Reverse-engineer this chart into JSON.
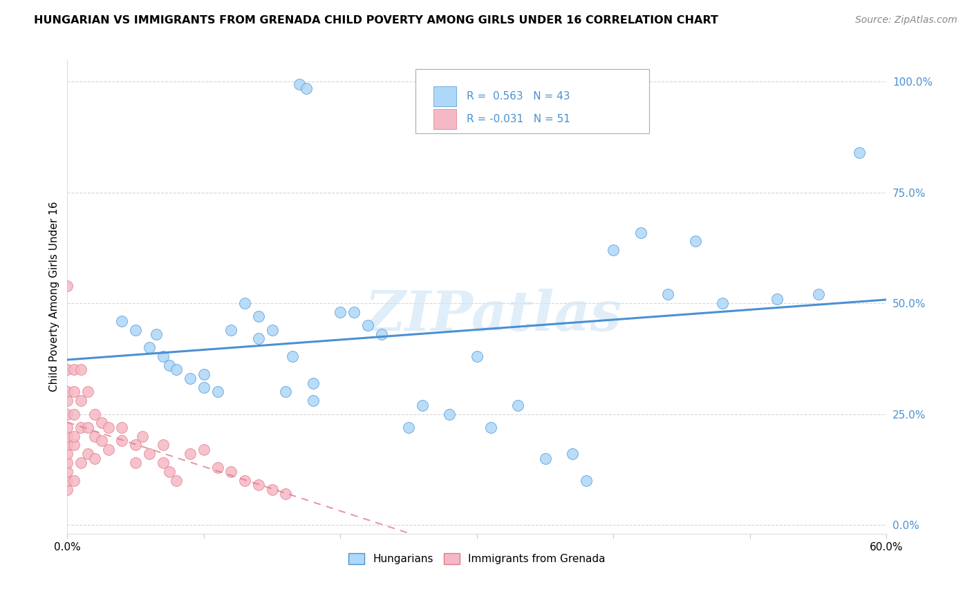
{
  "title": "HUNGARIAN VS IMMIGRANTS FROM GRENADA CHILD POVERTY AMONG GIRLS UNDER 16 CORRELATION CHART",
  "source": "Source: ZipAtlas.com",
  "ylabel": "Child Poverty Among Girls Under 16",
  "xlim": [
    0,
    0.6
  ],
  "ylim": [
    -0.02,
    1.05
  ],
  "yticks": [
    0,
    0.25,
    0.5,
    0.75,
    1.0
  ],
  "ytick_labels": [
    "0.0%",
    "25.0%",
    "50.0%",
    "75.0%",
    "100.0%"
  ],
  "xticks": [
    0.0,
    0.1,
    0.2,
    0.3,
    0.4,
    0.5,
    0.6
  ],
  "xtick_labels": [
    "0.0%",
    "",
    "",
    "",
    "",
    "",
    "60.0%"
  ],
  "hungarian_R": 0.563,
  "hungarian_N": 43,
  "grenada_R": -0.031,
  "grenada_N": 51,
  "hungarian_color": "#add8f7",
  "grenada_color": "#f5b8c4",
  "hungarian_line_color": "#4a90d4",
  "grenada_line_color": "#e07888",
  "watermark": "ZIPatlas",
  "hungarian_x": [
    0.17,
    0.175,
    0.04,
    0.05,
    0.06,
    0.065,
    0.07,
    0.075,
    0.08,
    0.09,
    0.1,
    0.1,
    0.11,
    0.12,
    0.13,
    0.14,
    0.14,
    0.15,
    0.16,
    0.165,
    0.18,
    0.18,
    0.2,
    0.21,
    0.22,
    0.23,
    0.25,
    0.26,
    0.28,
    0.3,
    0.31,
    0.33,
    0.35,
    0.37,
    0.38,
    0.4,
    0.42,
    0.44,
    0.46,
    0.48,
    0.52,
    0.55,
    0.58
  ],
  "hungarian_y": [
    0.995,
    0.985,
    0.46,
    0.44,
    0.4,
    0.43,
    0.38,
    0.36,
    0.35,
    0.33,
    0.31,
    0.34,
    0.3,
    0.44,
    0.5,
    0.42,
    0.47,
    0.44,
    0.3,
    0.38,
    0.28,
    0.32,
    0.48,
    0.48,
    0.45,
    0.43,
    0.22,
    0.27,
    0.25,
    0.38,
    0.22,
    0.27,
    0.15,
    0.16,
    0.1,
    0.62,
    0.66,
    0.52,
    0.64,
    0.5,
    0.51,
    0.52,
    0.84
  ],
  "grenada_x": [
    0.0,
    0.0,
    0.0,
    0.0,
    0.0,
    0.0,
    0.0,
    0.0,
    0.0,
    0.0,
    0.0,
    0.0,
    0.0,
    0.005,
    0.005,
    0.005,
    0.005,
    0.005,
    0.005,
    0.01,
    0.01,
    0.01,
    0.01,
    0.015,
    0.015,
    0.015,
    0.02,
    0.02,
    0.02,
    0.025,
    0.025,
    0.03,
    0.03,
    0.04,
    0.04,
    0.05,
    0.05,
    0.055,
    0.06,
    0.07,
    0.07,
    0.075,
    0.08,
    0.09,
    0.1,
    0.11,
    0.12,
    0.13,
    0.14,
    0.15,
    0.16
  ],
  "grenada_y": [
    0.08,
    0.1,
    0.12,
    0.14,
    0.16,
    0.18,
    0.2,
    0.22,
    0.25,
    0.28,
    0.3,
    0.35,
    0.54,
    0.1,
    0.18,
    0.2,
    0.25,
    0.3,
    0.35,
    0.14,
    0.22,
    0.28,
    0.35,
    0.16,
    0.22,
    0.3,
    0.15,
    0.2,
    0.25,
    0.19,
    0.23,
    0.17,
    0.22,
    0.19,
    0.22,
    0.14,
    0.18,
    0.2,
    0.16,
    0.14,
    0.18,
    0.12,
    0.1,
    0.16,
    0.17,
    0.13,
    0.12,
    0.1,
    0.09,
    0.08,
    0.07
  ]
}
